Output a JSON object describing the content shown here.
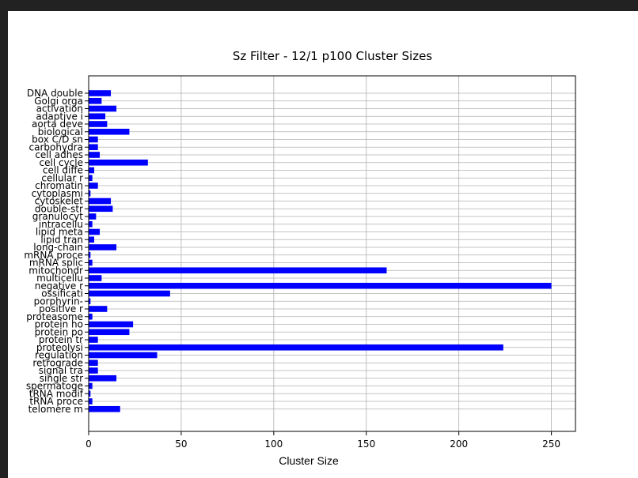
{
  "chart_data": {
    "type": "bar",
    "orientation": "horizontal",
    "title": "Sz Filter - 12/1 p100 Cluster Sizes",
    "xlabel": "Cluster Size",
    "ylabel": "",
    "xlim": [
      0,
      263
    ],
    "xticks": [
      0,
      50,
      100,
      150,
      200,
      250
    ],
    "grid": true,
    "bar_color": "#0000ff",
    "categories": [
      "DNA double",
      "Golgi orga",
      "activation",
      "adaptive i",
      "aorta deve",
      "biological",
      "box C/D sn",
      "carbohydra",
      "cell adhes",
      "cell cycle",
      "cell diffe",
      "cellular r",
      "chromatin",
      "cytoplasmi",
      "cytoskelet",
      "double-str",
      "granulocyt",
      "intracellu",
      "lipid meta",
      "lipid tran",
      "long-chain",
      "mRNA proce",
      "mRNA splic",
      "mitochondr",
      "multicellu",
      "negative r",
      "ossificati",
      "porphyrin-",
      "positive r",
      "proteasome",
      "protein ho",
      "protein po",
      "protein tr",
      "proteolysi",
      "regulation",
      "retrograde",
      "signal tra",
      "single str",
      "spermatoge",
      "tRNA modif",
      "tRNA proce",
      "telomere m"
    ],
    "values": [
      12,
      7,
      15,
      9,
      10,
      22,
      5,
      5,
      6,
      32,
      3,
      2,
      5,
      1,
      12,
      13,
      4,
      2,
      6,
      3,
      15,
      1,
      2,
      161,
      7,
      250,
      44,
      1,
      10,
      2,
      24,
      22,
      5,
      224,
      37,
      5,
      5,
      15,
      2,
      1,
      2,
      17
    ]
  }
}
